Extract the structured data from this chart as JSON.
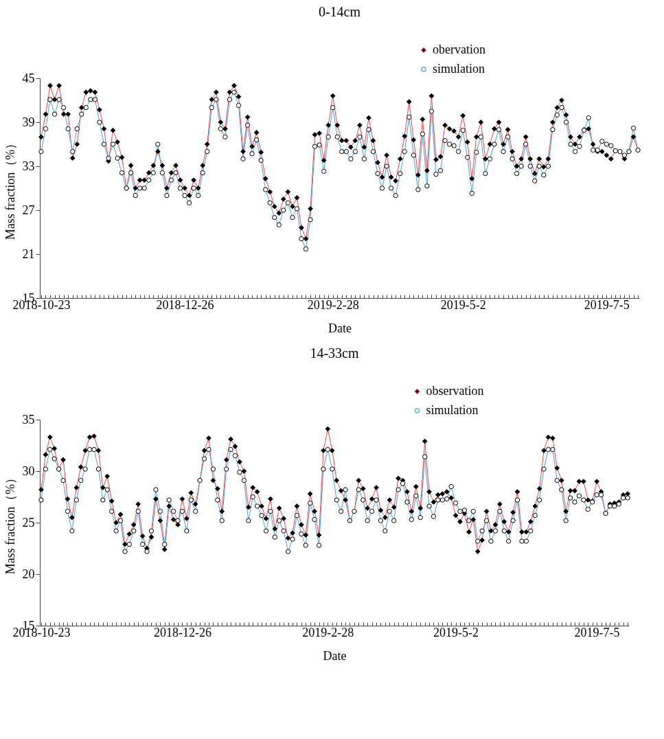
{
  "chart_data": [
    {
      "type": "line",
      "title": "0-14cm",
      "xlabel": "Date",
      "ylabel": "Mass fraction（%）",
      "ylim": [
        15,
        45
      ],
      "yticks": [
        15,
        21,
        27,
        33,
        39,
        45
      ],
      "legend": "top right",
      "grid": false,
      "categories": [
        "2018-10-23",
        null,
        null,
        null,
        null,
        null,
        null,
        null,
        null,
        null,
        null,
        null,
        null,
        null,
        null,
        null,
        null,
        null,
        null,
        null,
        null,
        null,
        null,
        null,
        null,
        null,
        null,
        null,
        null,
        null,
        null,
        null,
        "2018-12-26",
        null,
        null,
        null,
        null,
        null,
        null,
        null,
        null,
        null,
        null,
        null,
        null,
        null,
        null,
        null,
        null,
        null,
        null,
        null,
        null,
        null,
        null,
        null,
        null,
        null,
        null,
        null,
        null,
        null,
        null,
        null,
        null,
        "2019-2-28",
        null,
        null,
        null,
        null,
        null,
        null,
        null,
        null,
        null,
        null,
        null,
        null,
        null,
        null,
        null,
        null,
        null,
        null,
        null,
        null,
        null,
        null,
        null,
        null,
        null,
        null,
        null,
        null,
        "2019-5-2",
        null,
        null,
        null,
        null,
        null,
        null,
        null,
        null,
        null,
        null,
        null,
        null,
        null,
        null,
        null,
        null,
        null,
        null,
        null,
        null,
        null,
        null,
        null,
        null,
        null,
        null,
        null,
        null,
        null,
        null,
        null,
        "2019-7-5",
        null,
        null,
        null,
        null,
        null,
        null,
        null
      ],
      "series": [
        {
          "name": "obervation",
          "color": "#e8464f",
          "marker": "diamond",
          "values": [
            37.0,
            40.1,
            44.0,
            42.1,
            44.0,
            40.1,
            40.1,
            34.1,
            36.0,
            41.0,
            43.1,
            43.3,
            43.1,
            40.7,
            38.1,
            33.7,
            37.9,
            36.3,
            34.2,
            30.0,
            33.1,
            30.0,
            31.1,
            31.1,
            32.1,
            33.1,
            35.0,
            33.1,
            30.0,
            32.1,
            33.1,
            31.1,
            30.0,
            29.0,
            31.1,
            30.0,
            33.1,
            36.0,
            42.1,
            43.1,
            39.0,
            38.1,
            43.1,
            44.0,
            42.5,
            35.0,
            39.7,
            35.7,
            37.6,
            34.9,
            31.3,
            29.5,
            27.5,
            26.6,
            28.5,
            29.5,
            27.5,
            28.7,
            24.6,
            23.1,
            27.2,
            37.3,
            37.5,
            33.8,
            38.6,
            42.6,
            38.6,
            36.5,
            36.5,
            35.6,
            36.5,
            38.6,
            35.6,
            39.6,
            36.5,
            33.5,
            31.5,
            34.5,
            31.5,
            31.0,
            34.0,
            37.1,
            41.8,
            36.6,
            31.8,
            39.4,
            32.4,
            42.6,
            33.9,
            34.3,
            38.6,
            38.1,
            37.8,
            37.0,
            39.9,
            36.3,
            31.3,
            37.0,
            39.0,
            34.0,
            36.0,
            38.1,
            39.0,
            36.0,
            38.0,
            35.0,
            33.0,
            34.0,
            37.0,
            34.0,
            32.0,
            34.0,
            32.9,
            34.0,
            39.0,
            41.0,
            42.0,
            40.0,
            37.0,
            36.0,
            37.0,
            38.0,
            38.1,
            36.0,
            35.0,
            35.0,
            34.5,
            34.0,
            35.1,
            35.0,
            34.0,
            35.0,
            37.0,
            35.2
          ]
        },
        {
          "name": "simulation",
          "color": "#4a9fd8",
          "marker": "circle",
          "values": [
            35.0,
            38.1,
            42.1,
            40.1,
            42.1,
            41.0,
            38.1,
            35.0,
            38.1,
            40.1,
            41.0,
            42.1,
            42.1,
            39.0,
            36.0,
            34.1,
            36.0,
            34.1,
            32.1,
            30.0,
            32.1,
            29.0,
            30.0,
            30.0,
            31.1,
            32.1,
            36.0,
            32.1,
            29.0,
            31.1,
            32.1,
            30.0,
            29.0,
            28.0,
            30.0,
            29.0,
            32.1,
            35.0,
            41.0,
            42.1,
            38.1,
            37.0,
            42.1,
            43.1,
            41.3,
            34.0,
            38.6,
            34.7,
            36.6,
            33.8,
            29.8,
            28.0,
            26.0,
            25.0,
            27.0,
            28.0,
            26.0,
            27.2,
            23.1,
            21.7,
            25.7,
            35.7,
            35.9,
            32.3,
            37.0,
            41.0,
            37.0,
            35.0,
            35.0,
            34.0,
            35.0,
            37.0,
            34.0,
            38.0,
            35.0,
            32.0,
            30.0,
            33.0,
            30.0,
            29.0,
            32.0,
            35.0,
            39.7,
            34.5,
            29.8,
            37.4,
            30.3,
            40.5,
            31.9,
            32.4,
            36.5,
            36.0,
            35.8,
            35.0,
            37.9,
            34.2,
            29.3,
            34.9,
            37.0,
            32.0,
            34.0,
            36.0,
            38.0,
            35.0,
            37.0,
            34.0,
            32.0,
            33.0,
            36.0,
            33.0,
            31.0,
            33.0,
            31.8,
            33.0,
            38.0,
            40.0,
            41.0,
            39.0,
            36.0,
            35.0,
            35.7,
            37.9,
            39.6,
            35.2,
            35.2,
            36.4,
            36.0,
            35.8,
            35.1,
            35.0,
            34.5,
            35.0,
            38.2,
            35.2
          ]
        }
      ]
    },
    {
      "type": "line",
      "title": "14-33cm",
      "xlabel": "Date",
      "ylabel": "Mass fraction（%）",
      "ylim": [
        15,
        35
      ],
      "yticks": [
        15,
        20,
        25,
        30,
        35
      ],
      "legend": "top right",
      "grid": false,
      "categories": [
        "2018-10-23",
        null,
        null,
        null,
        null,
        null,
        null,
        null,
        null,
        null,
        null,
        null,
        null,
        null,
        null,
        null,
        null,
        null,
        null,
        null,
        null,
        null,
        null,
        null,
        null,
        null,
        null,
        null,
        null,
        null,
        null,
        null,
        "2018-12-26",
        null,
        null,
        null,
        null,
        null,
        null,
        null,
        null,
        null,
        null,
        null,
        null,
        null,
        null,
        null,
        null,
        null,
        null,
        null,
        null,
        null,
        null,
        null,
        null,
        null,
        null,
        null,
        null,
        null,
        null,
        null,
        null,
        "2019-2-28",
        null,
        null,
        null,
        null,
        null,
        null,
        null,
        null,
        null,
        null,
        null,
        null,
        null,
        null,
        null,
        null,
        null,
        null,
        null,
        null,
        null,
        null,
        null,
        null,
        null,
        null,
        null,
        null,
        "2019-5-2",
        null,
        null,
        null,
        null,
        null,
        null,
        null,
        null,
        null,
        null,
        null,
        null,
        null,
        null,
        null,
        null,
        null,
        null,
        null,
        null,
        null,
        null,
        null,
        null,
        null,
        null,
        null,
        null,
        null,
        null,
        null,
        "2019-7-5",
        null,
        null,
        null,
        null,
        null,
        null,
        null
      ],
      "series": [
        {
          "name": "observation",
          "color": "#e8464f",
          "marker": "diamond",
          "values": [
            28.2,
            31.6,
            33.3,
            32.2,
            30.2,
            31.1,
            27.3,
            25.5,
            28.4,
            30.4,
            32.0,
            33.3,
            33.4,
            32.0,
            28.4,
            29.5,
            27.1,
            25.0,
            25.8,
            22.9,
            23.9,
            24.8,
            26.8,
            23.7,
            22.5,
            23.6,
            27.3,
            25.2,
            22.4,
            26.6,
            25.3,
            24.8,
            27.3,
            25.4,
            27.9,
            26.8,
            29.1,
            32.0,
            33.2,
            29.1,
            28.3,
            26.1,
            31.1,
            33.1,
            32.4,
            30.9,
            30.0,
            26.5,
            28.4,
            28.0,
            26.6,
            25.4,
            27.3,
            24.4,
            26.4,
            25.4,
            23.5,
            24.0,
            26.6,
            24.8,
            23.8,
            27.8,
            26.1,
            23.8,
            32.0,
            34.1,
            32.0,
            29.1,
            28.1,
            27.2,
            25.2,
            26.1,
            29.1,
            28.3,
            26.4,
            27.3,
            28.4,
            26.2,
            25.5,
            27.2,
            26.5,
            29.3,
            29.1,
            28.0,
            26.1,
            28.5,
            26.4,
            32.9,
            28.0,
            27.0,
            27.7,
            27.8,
            28.0,
            27.4,
            25.7,
            25.1,
            25.9,
            24.1,
            25.3,
            22.2,
            23.3,
            26.1,
            24.2,
            24.8,
            26.8,
            25.1,
            24.1,
            26.0,
            28.0,
            24.1,
            24.1,
            25.1,
            26.6,
            28.3,
            32.0,
            33.3,
            33.2,
            30.3,
            29.1,
            26.1,
            28.1,
            28.1,
            29.0,
            29.0,
            27.2,
            27.1,
            29.0,
            28.0,
            25.9,
            26.8,
            26.9,
            27.0,
            27.7,
            27.8
          ]
        },
        {
          "name": "simulation",
          "color": "#4a9fd8",
          "marker": "circle",
          "values": [
            27.2,
            30.2,
            32.1,
            31.2,
            30.2,
            29.1,
            26.1,
            24.2,
            27.2,
            29.1,
            30.2,
            32.1,
            32.1,
            30.2,
            27.2,
            28.2,
            26.1,
            24.2,
            25.2,
            22.2,
            22.9,
            24.2,
            26.1,
            22.9,
            22.2,
            24.2,
            28.2,
            26.1,
            22.9,
            27.2,
            26.1,
            25.2,
            26.1,
            24.2,
            27.2,
            26.1,
            29.1,
            31.2,
            32.1,
            30.2,
            27.2,
            25.2,
            30.2,
            32.1,
            31.5,
            29.9,
            29.1,
            25.2,
            27.5,
            26.6,
            25.7,
            24.2,
            26.1,
            23.6,
            25.2,
            24.2,
            22.2,
            23.4,
            25.7,
            23.9,
            22.8,
            26.9,
            25.3,
            22.8,
            30.2,
            32.1,
            30.2,
            27.2,
            26.1,
            28.2,
            25.2,
            26.1,
            28.2,
            27.2,
            25.2,
            26.1,
            27.2,
            25.2,
            24.2,
            26.1,
            25.2,
            28.2,
            28.8,
            27.0,
            25.3,
            27.6,
            25.5,
            31.4,
            26.6,
            25.6,
            27.2,
            27.2,
            27.3,
            28.5,
            26.9,
            26.1,
            26.2,
            25.2,
            26.1,
            23.2,
            24.2,
            25.2,
            23.2,
            24.2,
            26.1,
            24.2,
            23.2,
            25.2,
            27.2,
            23.2,
            23.2,
            24.2,
            25.7,
            27.2,
            30.2,
            32.1,
            32.1,
            29.1,
            28.2,
            25.2,
            27.4,
            27.0,
            27.6,
            27.2,
            26.3,
            27.0,
            27.7,
            27.7,
            25.9,
            26.6,
            26.6,
            26.8,
            27.4,
            27.4
          ]
        }
      ]
    }
  ]
}
